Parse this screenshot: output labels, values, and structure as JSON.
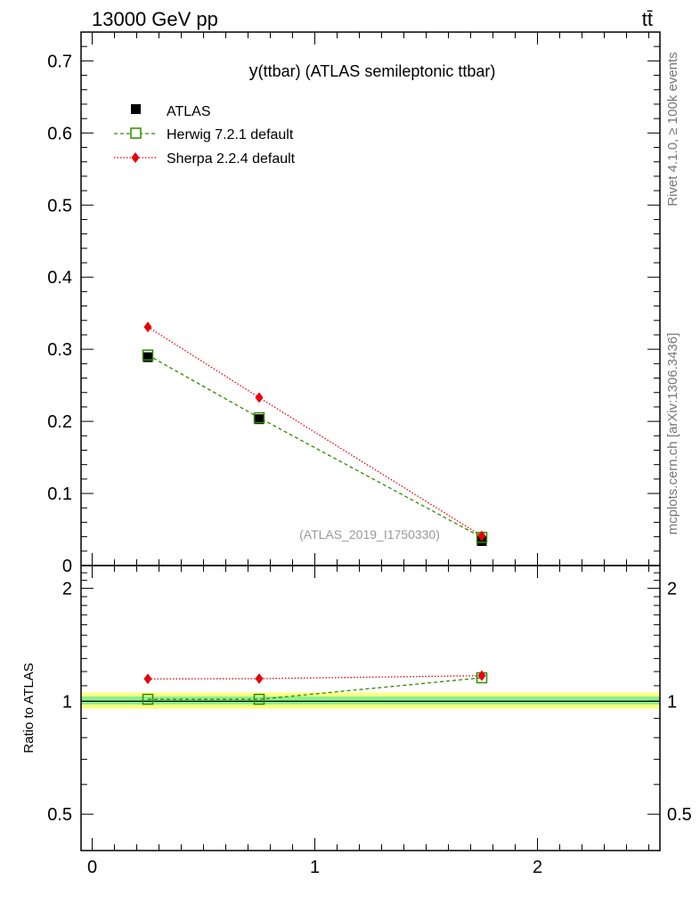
{
  "header": {
    "left": "13000 GeV pp",
    "right": "tt̄"
  },
  "side_labels": {
    "rivet": "Rivet 4.1.0, ≥ 100k events",
    "mcplots": "mcplots.cern.ch [arXiv:1306.3436]"
  },
  "colors": {
    "data": "#000000",
    "herwig": "#2e8b00",
    "sherpa": "#e8000b",
    "band_inner": "#8cf08c",
    "band_outer": "#ffff80"
  },
  "chart_data": [
    {
      "type": "scatter",
      "title": "y(ttbar) (ATLAS semileptonic ttbar)",
      "title_prefix": "y",
      "title_rest": "(ttbar) (ATLAS semileptonic ttbar)",
      "watermark": "(ATLAS_2019_I1750330)",
      "xlabel": "",
      "ylabel": "",
      "xlim": [
        -0.05,
        2.55
      ],
      "ylim": [
        0,
        0.74
      ],
      "yticks": [
        0,
        0.1,
        0.2,
        0.3,
        0.4,
        0.5,
        0.6,
        0.7
      ],
      "ytick_labels": [
        "0",
        "0.1",
        "0.2",
        "0.3",
        "0.4",
        "0.5",
        "0.6",
        "0.7"
      ],
      "legend_position": "top-left",
      "series": [
        {
          "name": "ATLAS",
          "key": "data",
          "marker": "filled-square",
          "x": [
            0.25,
            0.75,
            1.75
          ],
          "y": [
            0.289,
            0.203,
            0.034
          ]
        },
        {
          "name": "Herwig 7.2.1 default",
          "key": "herwig",
          "marker": "open-square",
          "line": "dashed",
          "x": [
            0.25,
            0.75,
            1.75
          ],
          "y": [
            0.292,
            0.205,
            0.039
          ]
        },
        {
          "name": "Sherpa 2.2.4 default",
          "key": "sherpa",
          "marker": "diamond",
          "line": "dotted",
          "x": [
            0.25,
            0.75,
            1.75
          ],
          "y": [
            0.331,
            0.233,
            0.041
          ]
        }
      ]
    },
    {
      "type": "scatter",
      "title": "",
      "ylabel": "Ratio to ATLAS",
      "xlim": [
        -0.05,
        2.55
      ],
      "ylim": [
        0.4,
        2.3
      ],
      "log_y": true,
      "yticks": [
        0.5,
        1,
        2
      ],
      "ytick_labels": [
        "0.5",
        "1",
        "2"
      ],
      "xticks": [
        0,
        1,
        2
      ],
      "xtick_labels": [
        "0",
        "1",
        "2"
      ],
      "band_inner": [
        0.98,
        1.03
      ],
      "band_outer": [
        0.955,
        1.055
      ],
      "series": [
        {
          "name": "Herwig 7.2.1 default",
          "key": "herwig",
          "marker": "open-square",
          "line": "dashed",
          "x": [
            0.25,
            0.75,
            1.75
          ],
          "y": [
            1.012,
            1.012,
            1.155
          ]
        },
        {
          "name": "Sherpa 2.2.4 default",
          "key": "sherpa",
          "marker": "diamond",
          "line": "dotted",
          "x": [
            0.25,
            0.75,
            1.75
          ],
          "y": [
            1.147,
            1.149,
            1.17
          ]
        }
      ]
    }
  ]
}
